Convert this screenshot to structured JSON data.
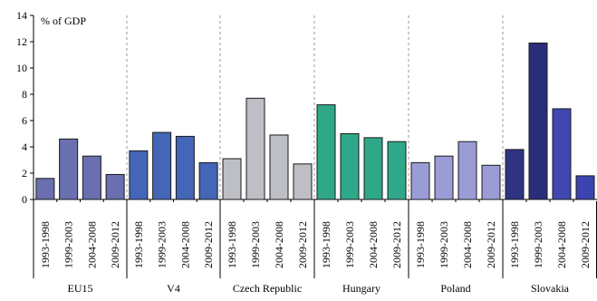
{
  "chart_data": {
    "type": "bar",
    "title": "",
    "ylabel": "% of GDP",
    "xlabel": "",
    "ylim": [
      0,
      14
    ],
    "yticks": [
      0,
      2,
      4,
      6,
      8,
      10,
      12,
      14
    ],
    "grid": false,
    "legend": "none",
    "period_labels": [
      "1993-1998",
      "1999-2003",
      "2004-2008",
      "2009-2012"
    ],
    "groups": [
      {
        "name": "EU15",
        "color": "#6a6fb0",
        "values": [
          1.6,
          4.6,
          3.3,
          1.9
        ]
      },
      {
        "name": "V4",
        "color": "#4466b8",
        "values": [
          3.7,
          5.1,
          4.8,
          2.8
        ]
      },
      {
        "name": "Czech Republic",
        "color": "#bdbfc4",
        "values": [
          3.1,
          7.7,
          4.9,
          2.7
        ]
      },
      {
        "name": "Hungary",
        "color": "#2fa88a",
        "values": [
          7.2,
          5.0,
          4.7,
          4.4
        ]
      },
      {
        "name": "Poland",
        "color": "#9a9cd6",
        "values": [
          2.8,
          3.3,
          4.4,
          2.6
        ]
      },
      {
        "name": "Slovakia",
        "colors": [
          "#2e3382",
          "#2a2d7a",
          "#4048b0",
          "#3c44b0"
        ],
        "values": [
          3.8,
          11.9,
          6.9,
          1.8
        ]
      }
    ]
  }
}
